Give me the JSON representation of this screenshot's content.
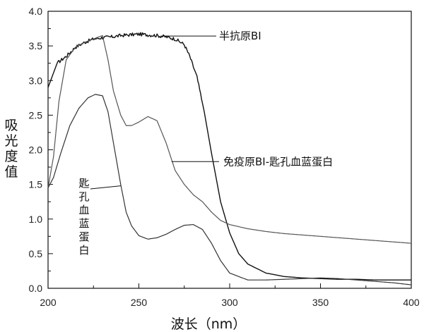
{
  "chart_data": {
    "type": "line",
    "xlabel": "波长（nm）",
    "ylabel": "吸光度值",
    "xlim": [
      200,
      400
    ],
    "ylim": [
      0,
      4
    ],
    "x_ticks": [
      "200",
      "250",
      "300",
      "350",
      "400"
    ],
    "y_ticks": [
      "0.0",
      "0.5",
      "1.0",
      "1.5",
      "2.0",
      "2.5",
      "3.0",
      "3.5",
      "4.0"
    ],
    "grid": false,
    "series": [
      {
        "name": "半抗原BⅠ",
        "color": "#111111",
        "x": [
          200,
          205,
          210,
          215,
          220,
          225,
          230,
          235,
          240,
          245,
          250,
          255,
          260,
          265,
          270,
          275,
          278,
          282,
          286,
          290,
          295,
          300,
          305,
          310,
          320,
          330,
          340,
          350,
          360,
          370,
          380,
          390,
          400
        ],
        "y": [
          2.9,
          3.25,
          3.35,
          3.48,
          3.55,
          3.6,
          3.62,
          3.63,
          3.65,
          3.66,
          3.67,
          3.66,
          3.65,
          3.63,
          3.6,
          3.52,
          3.35,
          3.05,
          2.55,
          1.95,
          1.25,
          0.8,
          0.5,
          0.35,
          0.22,
          0.17,
          0.15,
          0.14,
          0.13,
          0.13,
          0.12,
          0.12,
          0.12
        ]
      },
      {
        "name": "免疫原BⅠ-匙孔血蓝蛋白",
        "color": "#555555",
        "x": [
          200,
          203,
          206,
          210,
          215,
          220,
          225,
          230,
          233,
          236,
          240,
          243,
          246,
          250,
          255,
          260,
          265,
          270,
          275,
          280,
          285,
          290,
          295,
          300,
          310,
          320,
          330,
          340,
          350,
          360,
          370,
          380,
          390,
          400
        ],
        "y": [
          1.45,
          1.9,
          2.7,
          3.3,
          3.48,
          3.55,
          3.6,
          3.65,
          3.3,
          2.85,
          2.5,
          2.35,
          2.35,
          2.4,
          2.48,
          2.42,
          2.1,
          1.7,
          1.5,
          1.35,
          1.25,
          1.1,
          0.98,
          0.92,
          0.86,
          0.82,
          0.79,
          0.77,
          0.75,
          0.73,
          0.71,
          0.69,
          0.67,
          0.65
        ]
      },
      {
        "name": "匙孔血蓝蛋白",
        "color": "#333333",
        "x": [
          200,
          203,
          207,
          212,
          217,
          222,
          226,
          230,
          233,
          236,
          240,
          243,
          246,
          250,
          255,
          260,
          265,
          270,
          275,
          280,
          285,
          290,
          295,
          300,
          310,
          320,
          330,
          340,
          350,
          360,
          370,
          380,
          390,
          400
        ],
        "y": [
          1.45,
          1.6,
          1.95,
          2.35,
          2.6,
          2.75,
          2.8,
          2.78,
          2.55,
          2.1,
          1.5,
          1.1,
          0.9,
          0.76,
          0.71,
          0.73,
          0.78,
          0.85,
          0.91,
          0.92,
          0.85,
          0.65,
          0.4,
          0.22,
          0.12,
          0.12,
          0.13,
          0.14,
          0.15,
          0.14,
          0.12,
          0.1,
          0.08,
          0.05
        ]
      }
    ],
    "annotations": [
      {
        "text": "半抗原BⅠ",
        "target_series": 0,
        "target_x": 262
      },
      {
        "text": "免疫原BⅠ-匙孔血蓝蛋白",
        "target_series": 1,
        "target_x": 268
      },
      {
        "text": "匙孔血蓝蛋白",
        "target_series": 2,
        "target_x": 240
      }
    ]
  }
}
